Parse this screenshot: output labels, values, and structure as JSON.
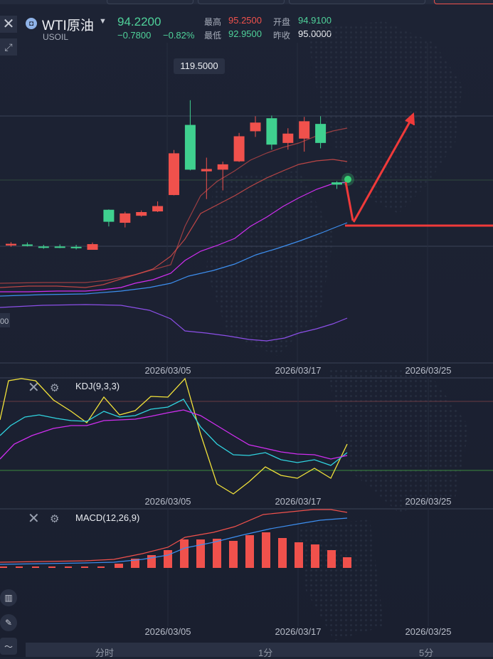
{
  "header": {
    "symbol_name": "WTI原油",
    "symbol_code": "USOIL",
    "price": "94.2200",
    "change": "−0.7800",
    "change_pct": "−0.82%",
    "high_label": "最高",
    "high_value": "95.2500",
    "open_label": "开盘",
    "open_value": "94.9100",
    "low_label": "最低",
    "low_value": "92.9500",
    "prev_close_label": "昨收",
    "prev_close_value": "95.0000"
  },
  "main_chart": {
    "peak_label": "119.5000",
    "left_axis_partial_label": "00",
    "date_labels": [
      "2026/03/05",
      "2026/03/17",
      "2026/03/25"
    ]
  },
  "kdj_panel": {
    "title": "KDJ(9,3,3)",
    "date_labels": [
      "2026/03/05",
      "2026/03/17",
      "2026/03/25"
    ]
  },
  "macd_panel": {
    "title": "MACD(12,26,9)",
    "date_labels": [
      "2026/03/05",
      "2026/03/17",
      "2026/03/25"
    ]
  },
  "bottom_tabs": [
    "分时",
    "1分",
    "5分"
  ],
  "colors": {
    "up": "#f0514c",
    "down": "#3fd08f",
    "background": "#1c2232",
    "ma_blue": "#3d8ff0",
    "ma_magenta": "#d02ef0",
    "band_purple": "#8c4fe8",
    "kdj_yellow": "#f2e23a",
    "kdj_cyan": "#30d4e0"
  },
  "icons": [
    "close-icon",
    "expand-icon",
    "gear-icon",
    "chart-tool-icon",
    "pen-icon",
    "trend-icon"
  ],
  "chart_data": {
    "type": "candlestick",
    "title": "WTI原油",
    "x_labels": [
      "2026/03/05",
      "2026/03/17",
      "2026/03/25"
    ],
    "candles": [
      {
        "o": 76.0,
        "c": 76.5,
        "h": 77.0,
        "l": 75.6
      },
      {
        "o": 76.3,
        "c": 76.1,
        "h": 76.9,
        "l": 75.7
      },
      {
        "o": 75.7,
        "c": 75.4,
        "h": 76.2,
        "l": 75.0
      },
      {
        "o": 75.7,
        "c": 75.4,
        "h": 76.3,
        "l": 75.2
      },
      {
        "o": 75.6,
        "c": 75.5,
        "h": 76.2,
        "l": 74.8
      },
      {
        "o": 74.7,
        "c": 76.4,
        "h": 76.9,
        "l": 74.7
      },
      {
        "o": 86.7,
        "c": 83.1,
        "h": 86.8,
        "l": 81.7
      },
      {
        "o": 82.8,
        "c": 85.6,
        "h": 86.1,
        "l": 81.4
      },
      {
        "o": 84.9,
        "c": 86.0,
        "h": 86.5,
        "l": 84.6
      },
      {
        "o": 86.2,
        "c": 87.8,
        "h": 89.2,
        "l": 86.0
      },
      {
        "o": 91.1,
        "c": 103.6,
        "h": 104.6,
        "l": 91.0
      },
      {
        "o": 112.1,
        "c": 98.7,
        "h": 119.5,
        "l": 98.5
      },
      {
        "o": 98.2,
        "c": 98.9,
        "h": 102.3,
        "l": 89.9
      },
      {
        "o": 98.7,
        "c": 100.3,
        "h": 101.1,
        "l": 92.5
      },
      {
        "o": 101.2,
        "c": 108.7,
        "h": 109.7,
        "l": 101.0
      },
      {
        "o": 110.2,
        "c": 112.8,
        "h": 114.7,
        "l": 108.5
      },
      {
        "o": 114.1,
        "c": 106.2,
        "h": 114.9,
        "l": 104.7
      },
      {
        "o": 106.7,
        "c": 109.5,
        "h": 111.1,
        "l": 104.7
      },
      {
        "o": 108.0,
        "c": 113.2,
        "h": 114.5,
        "l": 104.1
      },
      {
        "o": 112.4,
        "c": 106.7,
        "h": 114.7,
        "l": 105.1
      },
      {
        "o": 94.91,
        "c": 94.22,
        "h": 95.25,
        "l": 92.95
      }
    ],
    "ylim": [
      60,
      125
    ],
    "peak_value": 119.5
  }
}
